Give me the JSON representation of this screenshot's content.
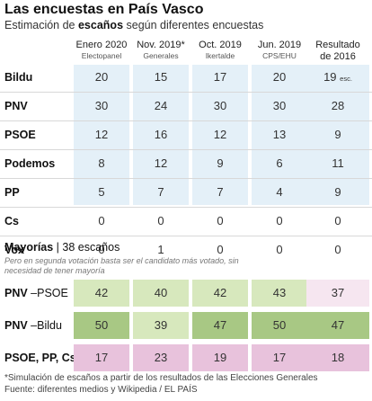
{
  "title": "Las encuestas en País Vasco",
  "subtitle": {
    "pre": "Estimación de ",
    "bold": "escaños",
    "post": " según diferentes encuestas"
  },
  "columns": [
    {
      "label": "Enero 2020",
      "source": "Electopanel"
    },
    {
      "label": "Nov. 2019*",
      "source": "Generales"
    },
    {
      "label": "Oct. 2019",
      "source": "Ikertalde"
    },
    {
      "label": "Jun. 2019",
      "source": "CPS/EHU"
    }
  ],
  "result_header": {
    "l1": "Resultado",
    "l2": "de 2016"
  },
  "parties": [
    {
      "name": "Bildu",
      "values": [
        "20",
        "15",
        "17",
        "20"
      ],
      "result": "19",
      "result_note": "esc."
    },
    {
      "name": "PNV",
      "values": [
        "30",
        "24",
        "30",
        "30"
      ],
      "result": "28",
      "result_note": ""
    },
    {
      "name": "PSOE",
      "values": [
        "12",
        "16",
        "12",
        "13"
      ],
      "result": "9",
      "result_note": ""
    },
    {
      "name": "Podemos",
      "values": [
        "8",
        "12",
        "9",
        "6"
      ],
      "result": "11",
      "result_note": ""
    },
    {
      "name": "PP",
      "values": [
        "5",
        "7",
        "7",
        "4"
      ],
      "result": "9",
      "result_note": ""
    },
    {
      "name": "Cs",
      "values": [
        "0",
        "0",
        "0",
        "0"
      ],
      "result": "0",
      "result_note": ""
    },
    {
      "name": "Vox",
      "values": [
        "0",
        "1",
        "0",
        "0"
      ],
      "result": "0",
      "result_note": ""
    }
  ],
  "majorities": {
    "title_bold": "Mayorías",
    "title_rest": " | 38 escaños",
    "note": "Pero en segunda votación basta ser el candidato más votado, sin necesidad de tener mayoría",
    "rows": [
      {
        "label_a": "PNV",
        "label_b": " –PSOE",
        "values": [
          "42",
          "40",
          "42",
          "43"
        ],
        "result": "37"
      },
      {
        "label_a": "PNV",
        "label_b": " –Bildu",
        "values": [
          "50",
          "39",
          "47",
          "50"
        ],
        "result": "47"
      },
      {
        "label_a": "PSOE, PP, Cs",
        "label_b": "",
        "values": [
          "17",
          "23",
          "19",
          "17"
        ],
        "result": "18"
      }
    ]
  },
  "footnotes": [
    "*Simulación de escaños a partir de los resultados de las Elecciones Generales",
    "Fuente: diferentes medios y Wikipedia / EL PAÍS"
  ],
  "colors": {
    "party_bg": "#e4f0f8",
    "maj_light_green": "#d7e8bd",
    "maj_dark_green": "#a8c884",
    "maj_pink": "#e8c2dc",
    "maj_pale_pink": "#f6e6f0"
  }
}
